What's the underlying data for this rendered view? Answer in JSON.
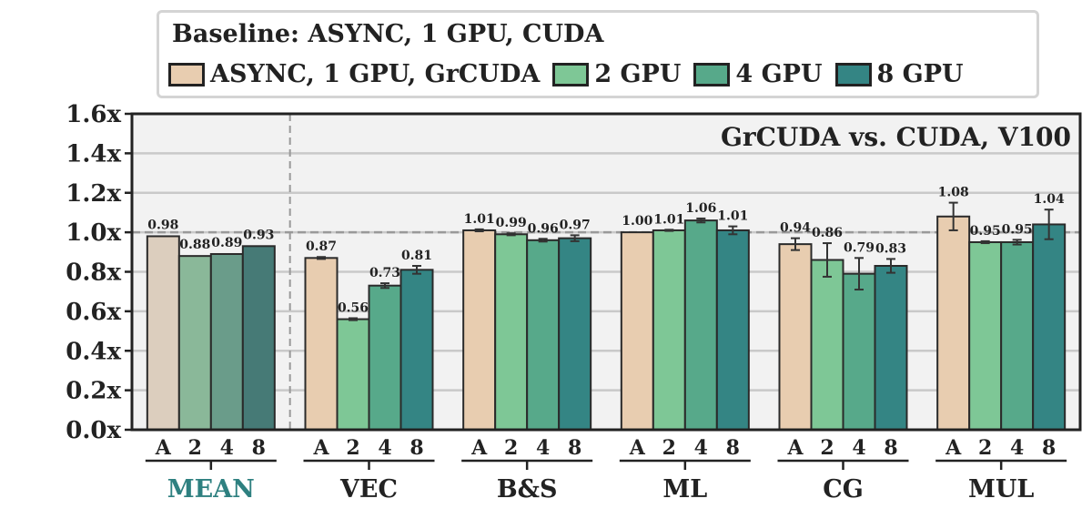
{
  "chart_data": {
    "type": "bar",
    "title": "GrCUDA vs. CUDA, V100",
    "legend": {
      "title": "Baseline: ASYNC, 1 GPU, CUDA",
      "placement": "top",
      "entries": [
        "ASYNC, 1 GPU, GrCUDA",
        "2 GPU",
        "4 GPU",
        "8 GPU"
      ]
    },
    "colors": [
      "#e8cdb0",
      "#7ec796",
      "#57a98a",
      "#348584"
    ],
    "mean_colors": [
      "#dccebe",
      "#8ab899",
      "#6a9c8a",
      "#467a76"
    ],
    "mean_label_color": "#2e8080",
    "bar_tick_labels": [
      "A",
      "2",
      "4",
      "8"
    ],
    "ylim": [
      0,
      1.6
    ],
    "yticks": [
      "0.0x",
      "0.2x",
      "0.4x",
      "0.6x",
      "0.8x",
      "1.0x",
      "1.2x",
      "1.4x",
      "1.6x"
    ],
    "reference_line": 1.0,
    "grid": true,
    "groups": [
      {
        "name": "MEAN",
        "values": [
          0.98,
          0.88,
          0.89,
          0.93
        ],
        "labels": [
          "0.98",
          "0.88",
          "0.89",
          "0.93"
        ],
        "errors": [
          0,
          0,
          0,
          0
        ]
      },
      {
        "name": "VEC",
        "values": [
          0.87,
          0.56,
          0.73,
          0.81
        ],
        "labels": [
          "0.87",
          "0.56",
          "0.73",
          "0.81"
        ],
        "errors": [
          0.005,
          0.005,
          0.012,
          0.02
        ]
      },
      {
        "name": "B&S",
        "values": [
          1.01,
          0.99,
          0.96,
          0.97
        ],
        "labels": [
          "1.01",
          "0.99",
          "0.96",
          "0.97"
        ],
        "errors": [
          0.005,
          0.005,
          0.007,
          0.015
        ]
      },
      {
        "name": "ML",
        "values": [
          1.0,
          1.01,
          1.06,
          1.01
        ],
        "labels": [
          "1.00",
          "1.01",
          "1.06",
          "1.01"
        ],
        "errors": [
          0,
          0.003,
          0.01,
          0.02
        ]
      },
      {
        "name": "CG",
        "values": [
          0.94,
          0.86,
          0.79,
          0.83
        ],
        "labels": [
          "0.94",
          "0.86",
          "0.79",
          "0.83"
        ],
        "errors": [
          0.03,
          0.085,
          0.08,
          0.035
        ]
      },
      {
        "name": "MUL",
        "values": [
          1.08,
          0.95,
          0.95,
          1.04
        ],
        "labels": [
          "1.08",
          "0.95",
          "0.95",
          "1.04"
        ],
        "errors": [
          0.07,
          0.005,
          0.012,
          0.075
        ]
      }
    ]
  }
}
